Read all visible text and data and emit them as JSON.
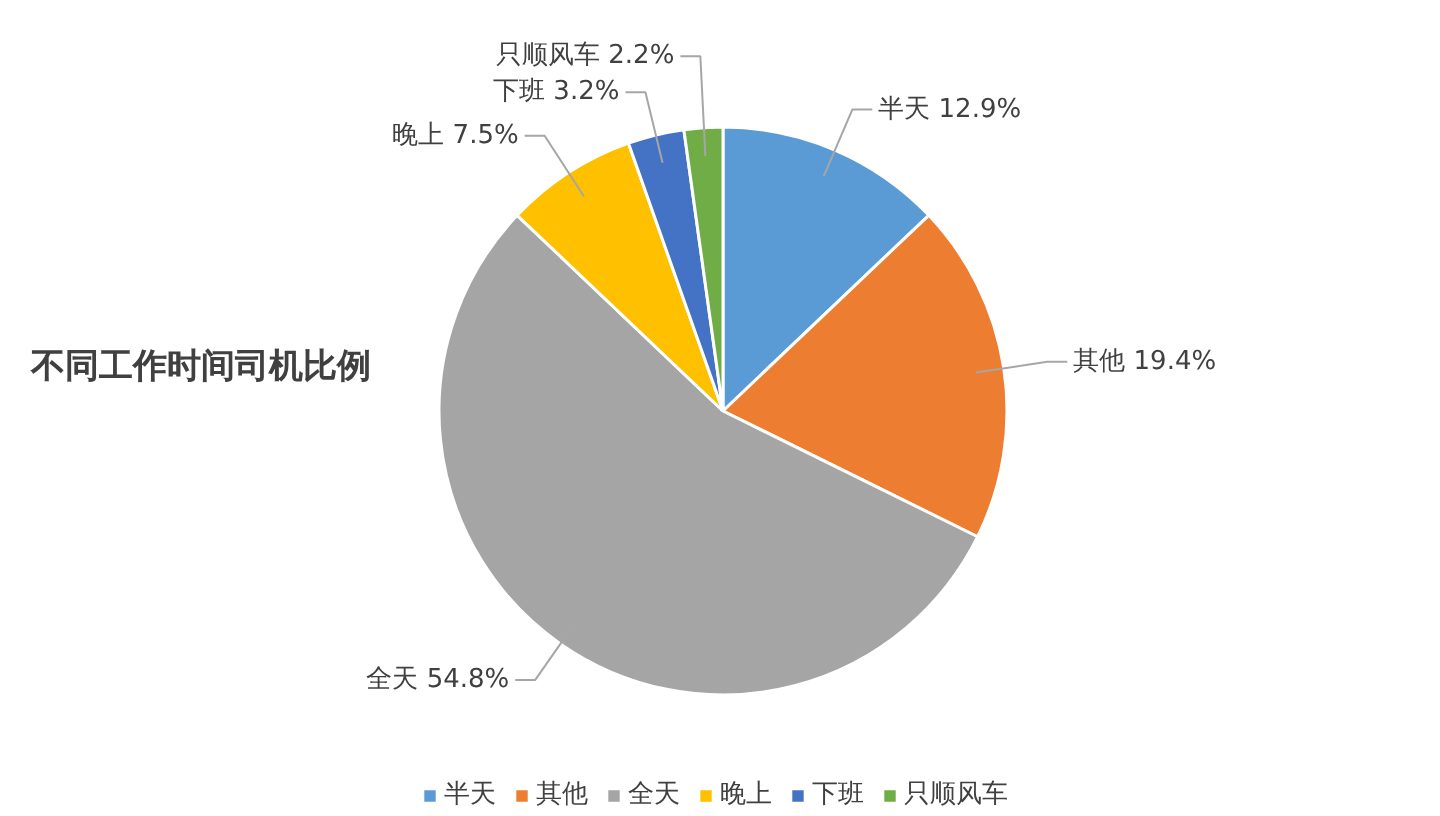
{
  "chart_data": {
    "type": "pie",
    "title": "不同工作时间司机比例",
    "categories": [
      "半天",
      "其他",
      "全天",
      "晚上",
      "下班",
      "只顺风车"
    ],
    "values": [
      12.9,
      19.4,
      54.8,
      7.5,
      3.2,
      2.2
    ],
    "colors": [
      "#5b9bd5",
      "#ed7d31",
      "#a5a5a5",
      "#ffc000",
      "#4472c4",
      "#70ad47"
    ],
    "value_labels": [
      "12.9%",
      "19.4%",
      "54.8%",
      "7.5%",
      "3.2%",
      "2.2%"
    ],
    "legend": "bottom"
  }
}
